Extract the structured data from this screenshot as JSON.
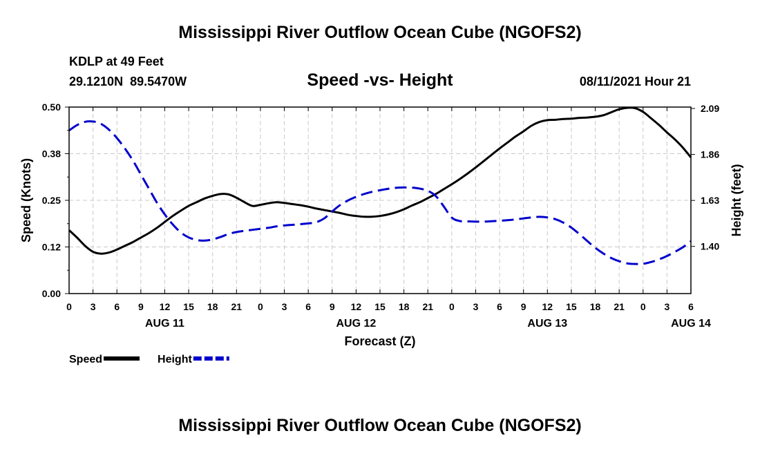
{
  "title": "Mississippi River Outflow Ocean Cube (NGOFS2)",
  "footer_title": "Mississippi River Outflow Ocean Cube (NGOFS2)",
  "station": {
    "name": "KDLP at 49 Feet",
    "coords": "29.1210N  89.5470W"
  },
  "subtitle": "Speed -vs- Height",
  "timestamp": "08/11/2021 Hour 21",
  "chart_data": {
    "type": "line",
    "title": "Speed -vs- Height",
    "xlabel": "Forecast (Z)",
    "ylabel": "Speed (Knots)",
    "y2label": "Height (feet)",
    "x_ticks": [
      "0",
      "3",
      "6",
      "9",
      "12",
      "15",
      "18",
      "21",
      "0",
      "3",
      "6",
      "9",
      "12",
      "15",
      "18",
      "21",
      "0",
      "3",
      "6",
      "9",
      "12",
      "15",
      "18",
      "21",
      "0",
      "3",
      "6"
    ],
    "date_labels": [
      {
        "label": "AUG 11",
        "hour_index": 12
      },
      {
        "label": "AUG 12",
        "hour_index": 36
      },
      {
        "label": "AUG 13",
        "hour_index": 60
      },
      {
        "label": "AUG 14",
        "hour_index": 78
      }
    ],
    "x_range": [
      0,
      78
    ],
    "ylim": [
      0,
      0.5
    ],
    "y_ticks": [
      "0.00",
      "0.12",
      "0.25",
      "0.38",
      "0.50"
    ],
    "y2lim": [
      1.164,
      2.097
    ],
    "y2_ticks": [
      {
        "label": "1.40",
        "value": 1.4
      },
      {
        "label": "1.63",
        "value": 1.63
      },
      {
        "label": "1.86",
        "value": 1.86
      },
      {
        "label": "2.09",
        "value": 2.09
      }
    ],
    "grid": true,
    "legend_position": "bottom-left",
    "series": [
      {
        "name": "Speed",
        "axis": "left",
        "color": "#000000",
        "style": "solid",
        "x": [
          0,
          1,
          2,
          3,
          4,
          5,
          6,
          7,
          8,
          9,
          10,
          11,
          12,
          13,
          14,
          15,
          16,
          17,
          18,
          19,
          20,
          21,
          22,
          23,
          24,
          25,
          26,
          27,
          28,
          29,
          30,
          31,
          32,
          33,
          34,
          35,
          36,
          37,
          38,
          39,
          40,
          41,
          42,
          43,
          44,
          45,
          46,
          47,
          48,
          49,
          50,
          51,
          52,
          53,
          54,
          55,
          56,
          57,
          58,
          59,
          60,
          61,
          62,
          63,
          64,
          65,
          66,
          67,
          68,
          69,
          70,
          71,
          72,
          73,
          74,
          75,
          76,
          77,
          78
        ],
        "values": [
          0.17,
          0.15,
          0.128,
          0.112,
          0.107,
          0.11,
          0.118,
          0.128,
          0.138,
          0.15,
          0.162,
          0.176,
          0.192,
          0.208,
          0.222,
          0.235,
          0.245,
          0.255,
          0.262,
          0.267,
          0.266,
          0.257,
          0.245,
          0.235,
          0.238,
          0.242,
          0.245,
          0.243,
          0.24,
          0.237,
          0.233,
          0.228,
          0.224,
          0.22,
          0.216,
          0.211,
          0.208,
          0.206,
          0.206,
          0.208,
          0.212,
          0.218,
          0.226,
          0.236,
          0.245,
          0.256,
          0.267,
          0.28,
          0.293,
          0.307,
          0.322,
          0.338,
          0.355,
          0.372,
          0.389,
          0.405,
          0.421,
          0.435,
          0.45,
          0.46,
          0.465,
          0.466,
          0.468,
          0.469,
          0.471,
          0.472,
          0.474,
          0.478,
          0.486,
          0.494,
          0.498,
          0.497,
          0.487,
          0.47,
          0.452,
          0.432,
          0.413,
          0.391,
          0.365
        ]
      },
      {
        "name": "Height",
        "axis": "right",
        "color": "#0000cc",
        "style": "dashed",
        "x": [
          0,
          1,
          2,
          3,
          4,
          5,
          6,
          7,
          8,
          9,
          10,
          11,
          12,
          13,
          14,
          15,
          16,
          17,
          18,
          19,
          20,
          21,
          22,
          23,
          24,
          25,
          26,
          27,
          28,
          29,
          30,
          31,
          32,
          33,
          34,
          35,
          36,
          37,
          38,
          39,
          40,
          41,
          42,
          43,
          44,
          45,
          46,
          47,
          48,
          49,
          50,
          51,
          52,
          53,
          54,
          55,
          56,
          57,
          58,
          59,
          60,
          61,
          62,
          63,
          64,
          65,
          66,
          67,
          68,
          69,
          70,
          71,
          72,
          73,
          74,
          75,
          76,
          77,
          78
        ],
        "values": [
          1.98,
          2.007,
          2.023,
          2.025,
          2.013,
          1.984,
          1.942,
          1.89,
          1.83,
          1.76,
          1.69,
          1.62,
          1.56,
          1.51,
          1.47,
          1.445,
          1.432,
          1.429,
          1.435,
          1.447,
          1.462,
          1.472,
          1.478,
          1.483,
          1.488,
          1.493,
          1.5,
          1.505,
          1.508,
          1.511,
          1.515,
          1.521,
          1.54,
          1.575,
          1.607,
          1.63,
          1.648,
          1.662,
          1.673,
          1.681,
          1.688,
          1.693,
          1.695,
          1.694,
          1.689,
          1.678,
          1.652,
          1.6,
          1.544,
          1.527,
          1.525,
          1.524,
          1.524,
          1.526,
          1.528,
          1.531,
          1.535,
          1.54,
          1.545,
          1.548,
          1.545,
          1.536,
          1.519,
          1.494,
          1.462,
          1.427,
          1.393,
          1.365,
          1.342,
          1.326,
          1.315,
          1.312,
          1.313,
          1.322,
          1.335,
          1.352,
          1.373,
          1.396,
          1.426
        ]
      }
    ],
    "legend": [
      {
        "label": "Speed",
        "color": "#000000",
        "style": "solid"
      },
      {
        "label": "Height",
        "color": "#0000cc",
        "style": "dashed"
      }
    ]
  }
}
